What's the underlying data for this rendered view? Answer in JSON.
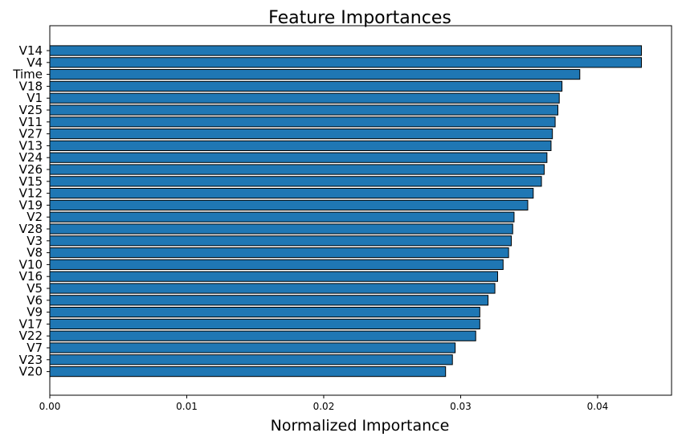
{
  "chart_data": {
    "type": "bar",
    "orientation": "horizontal",
    "title": "Feature Importances",
    "xlabel": "Normalized Importance",
    "ylabel": "",
    "xlim": [
      0,
      0.0454
    ],
    "xticks": [
      0,
      0.01,
      0.02,
      0.03,
      0.04
    ],
    "xtick_labels": [
      "0.00",
      "0.01",
      "0.02",
      "0.03",
      "0.04"
    ],
    "grid": false,
    "bar_color": "#1f77b4",
    "edge_color": "#000000",
    "categories": [
      "V14",
      "V4",
      "Time",
      "V18",
      "V1",
      "V25",
      "V11",
      "V27",
      "V13",
      "V24",
      "V26",
      "V15",
      "V12",
      "V19",
      "V2",
      "V28",
      "V3",
      "V8",
      "V10",
      "V16",
      "V5",
      "V6",
      "V9",
      "V17",
      "V22",
      "V7",
      "V23",
      "V20"
    ],
    "values": [
      0.0432,
      0.0432,
      0.0387,
      0.0374,
      0.0372,
      0.0371,
      0.0369,
      0.0367,
      0.0366,
      0.0363,
      0.0361,
      0.0359,
      0.0353,
      0.0349,
      0.0339,
      0.0338,
      0.0337,
      0.0335,
      0.0331,
      0.0327,
      0.0325,
      0.032,
      0.0314,
      0.0314,
      0.0311,
      0.0296,
      0.0294,
      0.0289
    ]
  }
}
